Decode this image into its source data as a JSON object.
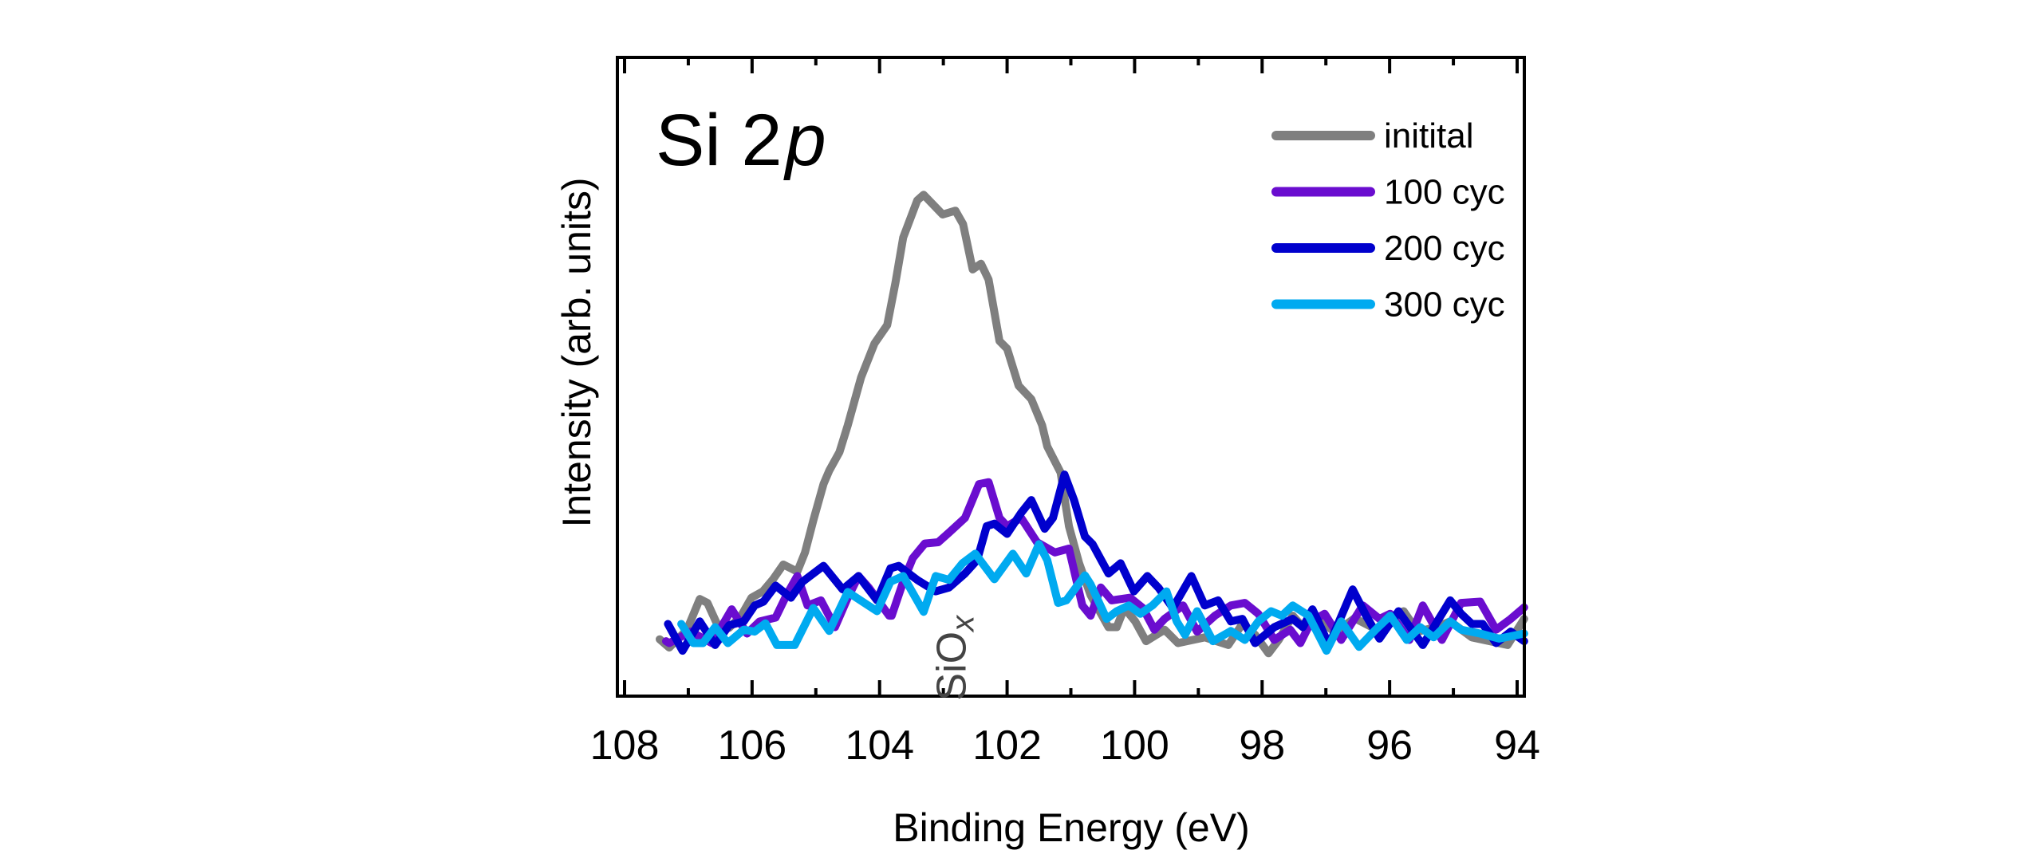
{
  "chart_data": {
    "type": "line",
    "panel_label": {
      "main": "Si 2",
      "italic": "p"
    },
    "xlabel": "Binding Energy (eV)",
    "ylabel": "Intensity (arb. units)",
    "xlim": [
      108,
      94
    ],
    "x_reversed": true,
    "ylim": [
      0,
      1
    ],
    "x_major_ticks": [
      108,
      106,
      104,
      102,
      100,
      98,
      96,
      94
    ],
    "x_tick_labels": [
      "108",
      "106",
      "104",
      "102",
      "100",
      "98",
      "96",
      "94"
    ],
    "x_minor_ticks": [
      107,
      105,
      103,
      101,
      99,
      97,
      95
    ],
    "y_ticks_labeled": false,
    "grid": false,
    "legend_position": "top-right",
    "annotation": {
      "text": "SiO",
      "subscript": "x",
      "x": 102.9,
      "y": 0.38,
      "rotation": "vertical"
    },
    "series": [
      {
        "name": "initital",
        "color": "#7f7f7f",
        "points": [
          [
            107.45,
            0.089
          ],
          [
            107.3,
            0.076
          ],
          [
            107.02,
            0.104
          ],
          [
            106.82,
            0.152
          ],
          [
            106.7,
            0.146
          ],
          [
            106.55,
            0.113
          ],
          [
            106.36,
            0.107
          ],
          [
            106.17,
            0.126
          ],
          [
            106.01,
            0.154
          ],
          [
            105.83,
            0.164
          ],
          [
            105.67,
            0.183
          ],
          [
            105.51,
            0.206
          ],
          [
            105.29,
            0.195
          ],
          [
            105.17,
            0.225
          ],
          [
            105.04,
            0.275
          ],
          [
            104.88,
            0.332
          ],
          [
            104.79,
            0.353
          ],
          [
            104.63,
            0.382
          ],
          [
            104.5,
            0.424
          ],
          [
            104.29,
            0.499
          ],
          [
            104.08,
            0.552
          ],
          [
            103.88,
            0.581
          ],
          [
            103.75,
            0.648
          ],
          [
            103.63,
            0.718
          ],
          [
            103.41,
            0.776
          ],
          [
            103.31,
            0.785
          ],
          [
            103.01,
            0.754
          ],
          [
            102.81,
            0.76
          ],
          [
            102.69,
            0.739
          ],
          [
            102.54,
            0.668
          ],
          [
            102.41,
            0.677
          ],
          [
            102.29,
            0.652
          ],
          [
            102.12,
            0.556
          ],
          [
            102.0,
            0.544
          ],
          [
            101.82,
            0.486
          ],
          [
            101.62,
            0.465
          ],
          [
            101.45,
            0.424
          ],
          [
            101.37,
            0.391
          ],
          [
            101.16,
            0.35
          ],
          [
            101.03,
            0.266
          ],
          [
            100.87,
            0.208
          ],
          [
            100.69,
            0.158
          ],
          [
            100.41,
            0.108
          ],
          [
            100.28,
            0.108
          ],
          [
            100.16,
            0.138
          ],
          [
            99.99,
            0.117
          ],
          [
            99.82,
            0.086
          ],
          [
            99.53,
            0.104
          ],
          [
            99.32,
            0.083
          ],
          [
            98.9,
            0.092
          ],
          [
            98.53,
            0.08
          ],
          [
            98.31,
            0.113
          ],
          [
            98.11,
            0.096
          ],
          [
            97.9,
            0.067
          ],
          [
            97.74,
            0.088
          ],
          [
            97.52,
            0.126
          ],
          [
            97.36,
            0.108
          ],
          [
            97.1,
            0.118
          ],
          [
            96.85,
            0.1
          ],
          [
            96.55,
            0.122
          ],
          [
            96.2,
            0.104
          ],
          [
            95.78,
            0.133
          ],
          [
            95.56,
            0.101
          ],
          [
            95.27,
            0.108
          ],
          [
            95.05,
            0.117
          ],
          [
            94.71,
            0.092
          ],
          [
            94.15,
            0.08
          ],
          [
            93.89,
            0.121
          ]
        ]
      },
      {
        "name": "100 cyc",
        "color": "#6a0dcf",
        "points": [
          [
            107.35,
            0.086
          ],
          [
            107.3,
            0.083
          ],
          [
            106.96,
            0.101
          ],
          [
            106.63,
            0.083
          ],
          [
            106.32,
            0.136
          ],
          [
            106.08,
            0.098
          ],
          [
            105.88,
            0.117
          ],
          [
            105.63,
            0.123
          ],
          [
            105.46,
            0.158
          ],
          [
            105.29,
            0.188
          ],
          [
            105.13,
            0.142
          ],
          [
            104.92,
            0.15
          ],
          [
            104.7,
            0.108
          ],
          [
            104.5,
            0.154
          ],
          [
            104.33,
            0.188
          ],
          [
            104.17,
            0.17
          ],
          [
            103.85,
            0.126
          ],
          [
            103.81,
            0.126
          ],
          [
            103.63,
            0.179
          ],
          [
            103.48,
            0.216
          ],
          [
            103.29,
            0.239
          ],
          [
            103.08,
            0.241
          ],
          [
            102.91,
            0.256
          ],
          [
            102.66,
            0.279
          ],
          [
            102.44,
            0.332
          ],
          [
            102.29,
            0.335
          ],
          [
            102.12,
            0.279
          ],
          [
            102.0,
            0.266
          ],
          [
            101.78,
            0.279
          ],
          [
            101.53,
            0.241
          ],
          [
            101.25,
            0.225
          ],
          [
            101.03,
            0.231
          ],
          [
            100.82,
            0.142
          ],
          [
            100.69,
            0.126
          ],
          [
            100.53,
            0.17
          ],
          [
            100.36,
            0.15
          ],
          [
            100.07,
            0.154
          ],
          [
            99.87,
            0.138
          ],
          [
            99.69,
            0.104
          ],
          [
            99.53,
            0.121
          ],
          [
            99.24,
            0.142
          ],
          [
            99.02,
            0.101
          ],
          [
            98.74,
            0.126
          ],
          [
            98.49,
            0.142
          ],
          [
            98.27,
            0.146
          ],
          [
            98.06,
            0.129
          ],
          [
            97.81,
            0.088
          ],
          [
            97.56,
            0.104
          ],
          [
            97.4,
            0.083
          ],
          [
            97.23,
            0.117
          ],
          [
            97.02,
            0.129
          ],
          [
            96.76,
            0.088
          ],
          [
            96.42,
            0.142
          ],
          [
            96.16,
            0.121
          ],
          [
            95.99,
            0.129
          ],
          [
            95.69,
            0.088
          ],
          [
            95.48,
            0.142
          ],
          [
            95.18,
            0.088
          ],
          [
            94.88,
            0.146
          ],
          [
            94.58,
            0.148
          ],
          [
            94.33,
            0.104
          ],
          [
            94.1,
            0.121
          ],
          [
            93.89,
            0.139
          ]
        ]
      },
      {
        "name": "200 cyc",
        "color": "#0000cd",
        "points": [
          [
            107.32,
            0.113
          ],
          [
            107.09,
            0.071
          ],
          [
            106.82,
            0.117
          ],
          [
            106.58,
            0.08
          ],
          [
            106.36,
            0.111
          ],
          [
            106.13,
            0.117
          ],
          [
            105.96,
            0.142
          ],
          [
            105.82,
            0.148
          ],
          [
            105.63,
            0.173
          ],
          [
            105.39,
            0.154
          ],
          [
            105.21,
            0.179
          ],
          [
            104.88,
            0.204
          ],
          [
            104.58,
            0.167
          ],
          [
            104.33,
            0.188
          ],
          [
            104.04,
            0.15
          ],
          [
            103.83,
            0.2
          ],
          [
            103.7,
            0.204
          ],
          [
            103.41,
            0.182
          ],
          [
            103.12,
            0.164
          ],
          [
            102.91,
            0.17
          ],
          [
            102.66,
            0.192
          ],
          [
            102.47,
            0.213
          ],
          [
            102.32,
            0.266
          ],
          [
            102.2,
            0.27
          ],
          [
            102.0,
            0.254
          ],
          [
            101.78,
            0.287
          ],
          [
            101.62,
            0.307
          ],
          [
            101.41,
            0.262
          ],
          [
            101.28,
            0.279
          ],
          [
            101.1,
            0.347
          ],
          [
            100.95,
            0.307
          ],
          [
            100.78,
            0.25
          ],
          [
            100.66,
            0.238
          ],
          [
            100.41,
            0.192
          ],
          [
            100.22,
            0.208
          ],
          [
            100.01,
            0.164
          ],
          [
            99.8,
            0.188
          ],
          [
            99.62,
            0.169
          ],
          [
            99.4,
            0.138
          ],
          [
            99.11,
            0.188
          ],
          [
            98.9,
            0.142
          ],
          [
            98.69,
            0.15
          ],
          [
            98.49,
            0.117
          ],
          [
            98.31,
            0.121
          ],
          [
            98.11,
            0.083
          ],
          [
            97.81,
            0.108
          ],
          [
            97.52,
            0.121
          ],
          [
            97.36,
            0.108
          ],
          [
            97.21,
            0.136
          ],
          [
            96.95,
            0.08
          ],
          [
            96.58,
            0.167
          ],
          [
            96.37,
            0.126
          ],
          [
            96.16,
            0.09
          ],
          [
            95.86,
            0.133
          ],
          [
            95.48,
            0.08
          ],
          [
            95.05,
            0.15
          ],
          [
            94.88,
            0.129
          ],
          [
            94.71,
            0.113
          ],
          [
            94.54,
            0.113
          ],
          [
            94.33,
            0.083
          ],
          [
            94.1,
            0.101
          ],
          [
            93.89,
            0.086
          ]
        ]
      },
      {
        "name": "300 cyc",
        "color": "#00aaf0",
        "points": [
          [
            107.11,
            0.113
          ],
          [
            106.92,
            0.083
          ],
          [
            106.77,
            0.083
          ],
          [
            106.58,
            0.108
          ],
          [
            106.38,
            0.083
          ],
          [
            106.13,
            0.104
          ],
          [
            105.96,
            0.101
          ],
          [
            105.79,
            0.114
          ],
          [
            105.61,
            0.08
          ],
          [
            105.33,
            0.08
          ],
          [
            105.04,
            0.138
          ],
          [
            104.79,
            0.102
          ],
          [
            104.5,
            0.163
          ],
          [
            104.04,
            0.133
          ],
          [
            103.83,
            0.179
          ],
          [
            103.63,
            0.188
          ],
          [
            103.31,
            0.132
          ],
          [
            103.12,
            0.188
          ],
          [
            102.91,
            0.182
          ],
          [
            102.7,
            0.208
          ],
          [
            102.5,
            0.223
          ],
          [
            102.2,
            0.183
          ],
          [
            101.91,
            0.223
          ],
          [
            101.7,
            0.192
          ],
          [
            101.5,
            0.238
          ],
          [
            101.37,
            0.213
          ],
          [
            101.2,
            0.146
          ],
          [
            101.07,
            0.15
          ],
          [
            100.78,
            0.189
          ],
          [
            100.69,
            0.175
          ],
          [
            100.44,
            0.121
          ],
          [
            100.28,
            0.133
          ],
          [
            100.09,
            0.142
          ],
          [
            99.91,
            0.129
          ],
          [
            99.72,
            0.142
          ],
          [
            99.5,
            0.164
          ],
          [
            99.34,
            0.117
          ],
          [
            99.21,
            0.096
          ],
          [
            99.02,
            0.133
          ],
          [
            98.77,
            0.086
          ],
          [
            98.49,
            0.102
          ],
          [
            98.27,
            0.088
          ],
          [
            98.06,
            0.117
          ],
          [
            97.86,
            0.133
          ],
          [
            97.69,
            0.126
          ],
          [
            97.52,
            0.142
          ],
          [
            97.27,
            0.126
          ],
          [
            96.99,
            0.071
          ],
          [
            96.76,
            0.117
          ],
          [
            96.48,
            0.077
          ],
          [
            96.22,
            0.104
          ],
          [
            95.99,
            0.126
          ],
          [
            95.73,
            0.088
          ],
          [
            95.52,
            0.108
          ],
          [
            95.31,
            0.092
          ],
          [
            95.05,
            0.117
          ],
          [
            94.88,
            0.104
          ],
          [
            94.58,
            0.098
          ],
          [
            94.28,
            0.09
          ],
          [
            93.89,
            0.098
          ]
        ]
      }
    ]
  }
}
